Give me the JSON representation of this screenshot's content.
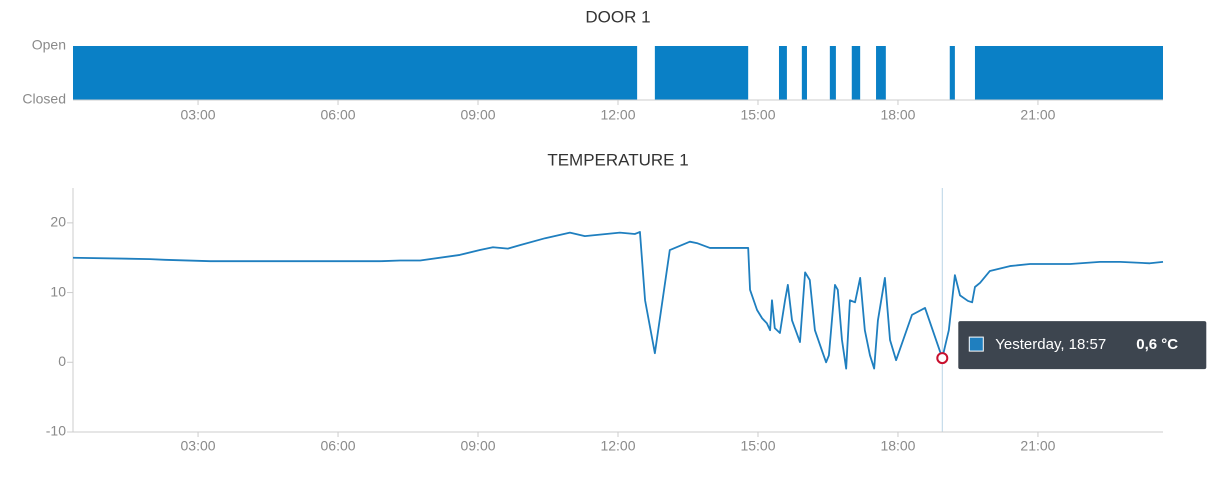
{
  "chart_data": [
    {
      "type": "step",
      "title": "DOOR 1",
      "color": "#0a80c6",
      "x": [
        0.32,
        12.41,
        12.79,
        14.79,
        15.45,
        15.62,
        15.94,
        16.05,
        16.54,
        16.67,
        17.01,
        17.19,
        17.53,
        17.74,
        19.11,
        19.22,
        19.65
      ],
      "values": [
        1,
        0,
        1,
        0,
        1,
        0,
        1,
        0,
        1,
        0,
        1,
        0,
        1,
        0,
        1,
        0,
        1
      ],
      "xlim": [
        0.32,
        23.68
      ],
      "xticks": [
        {
          "value": 3,
          "label": "03:00"
        },
        {
          "value": 6,
          "label": "06:00"
        },
        {
          "value": 9,
          "label": "09:00"
        },
        {
          "value": 12,
          "label": "12:00"
        },
        {
          "value": 15,
          "label": "15:00"
        },
        {
          "value": 18,
          "label": "18:00"
        },
        {
          "value": 21,
          "label": "21:00"
        }
      ],
      "ylim": [
        0,
        1
      ],
      "yticks": [
        {
          "value": 1,
          "label": "Open"
        },
        {
          "value": 0,
          "label": "Closed"
        }
      ]
    },
    {
      "type": "line",
      "title": "TEMPERATURE 1",
      "color": "#1f7fbf",
      "x": [
        0.32,
        1.97,
        2.29,
        3.26,
        6.9,
        7.33,
        7.76,
        8.61,
        9.04,
        9.32,
        9.64,
        9.9,
        10.44,
        10.97,
        11.29,
        12.04,
        12.36,
        12.47,
        12.58,
        12.79,
        13.11,
        13.54,
        13.69,
        13.97,
        14.79,
        14.83,
        14.98,
        15.09,
        15.19,
        15.26,
        15.3,
        15.36,
        15.47,
        15.58,
        15.64,
        15.73,
        15.9,
        16.01,
        16.11,
        16.22,
        16.37,
        16.46,
        16.52,
        16.65,
        16.71,
        16.8,
        16.89,
        16.97,
        17.08,
        17.19,
        17.29,
        17.4,
        17.49,
        17.57,
        17.72,
        17.83,
        17.96,
        18.3,
        18.58,
        18.95,
        19.09,
        19.22,
        19.33,
        19.5,
        19.59,
        19.65,
        19.76,
        19.97,
        20.4,
        20.83,
        21.69,
        22.33,
        22.76,
        23.4,
        23.68
      ],
      "values": [
        15,
        14.8,
        14.7,
        14.5,
        14.5,
        14.6,
        14.6,
        15.4,
        16.1,
        16.5,
        16.3,
        16.8,
        17.8,
        18.6,
        18.1,
        18.6,
        18.4,
        18.7,
        8.9,
        1.3,
        16.1,
        17.3,
        17.1,
        16.4,
        16.4,
        10.4,
        7.5,
        6.3,
        5.6,
        4.6,
        8.9,
        4.9,
        4.2,
        8.9,
        11.1,
        6.0,
        2.9,
        12.9,
        11.8,
        4.6,
        1.7,
        0,
        1.0,
        11.1,
        10.4,
        3.2,
        -0.9,
        8.9,
        8.6,
        12.1,
        4.6,
        1.0,
        -0.9,
        6.0,
        12.1,
        3.2,
        0.3,
        6.8,
        7.8,
        0.6,
        4.6,
        12.5,
        9.6,
        8.8,
        8.6,
        10.8,
        11.4,
        13.1,
        13.8,
        14.1,
        14.1,
        14.4,
        14.4,
        14.2,
        14.4
      ],
      "xlim": [
        0.32,
        23.68
      ],
      "xticks": [
        {
          "value": 3,
          "label": "03:00"
        },
        {
          "value": 6,
          "label": "06:00"
        },
        {
          "value": 9,
          "label": "09:00"
        },
        {
          "value": 12,
          "label": "12:00"
        },
        {
          "value": 15,
          "label": "15:00"
        },
        {
          "value": 18,
          "label": "18:00"
        },
        {
          "value": 21,
          "label": "21:00"
        }
      ],
      "ylim": [
        -10,
        25
      ],
      "yticks": [
        -10,
        0,
        10,
        20
      ],
      "tooltip": {
        "label": "Yesterday, 18:57",
        "x": 18.95,
        "value": 0.6,
        "value_label": "0,6 °C"
      }
    }
  ]
}
